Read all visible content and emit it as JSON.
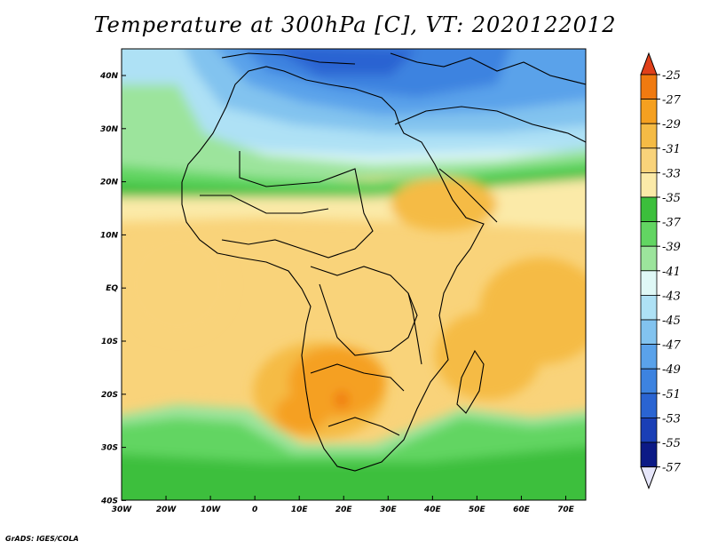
{
  "title": "Temperature at 300hPa [C], VT: 2020122012",
  "credit": "GrADS: IGES/COLA",
  "x_ticks": [
    "30W",
    "20W",
    "10W",
    "0",
    "10E",
    "20E",
    "30E",
    "40E",
    "50E",
    "60E",
    "70E"
  ],
  "y_ticks": [
    "40N",
    "30N",
    "20N",
    "10N",
    "EQ",
    "10S",
    "20S",
    "30S",
    "40S"
  ],
  "colorbar": {
    "labels": [
      "-25",
      "-27",
      "-29",
      "-31",
      "-33",
      "-35",
      "-37",
      "-39",
      "-41",
      "-43",
      "-45",
      "-47",
      "-49",
      "-51",
      "-53",
      "-55",
      "-57"
    ],
    "colors": [
      "#e0401a",
      "#f07a10",
      "#f5a020",
      "#f5bb45",
      "#f9d37a",
      "#fbeaa8",
      "#3cbf3c",
      "#62d562",
      "#9ce49c",
      "#dff8f6",
      "#aee1f5",
      "#82c3ef",
      "#5aa2ea",
      "#3d83e0",
      "#2a64d2",
      "#1a3fb6",
      "#0c1a86"
    ]
  }
}
